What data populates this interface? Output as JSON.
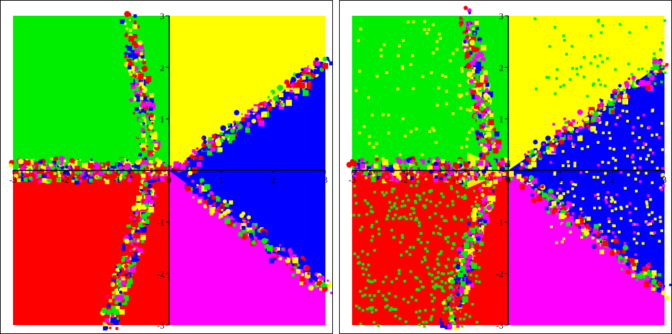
{
  "plots": [
    {
      "id": "left",
      "x_ticks": [
        "-3",
        "-2",
        "-1",
        "0",
        "1",
        "2",
        "3"
      ],
      "y_ticks": [
        "3",
        "2",
        "1",
        "-1",
        "-2",
        "-3"
      ],
      "xlim": [
        -3,
        3
      ],
      "ylim": [
        -3,
        3
      ],
      "colors": {
        "q1": "#ffff00",
        "q2": "#00ee00",
        "q3": "#ff0000",
        "q4": "#ff00ff",
        "blue": "#0000ff"
      }
    },
    {
      "id": "right",
      "x_ticks": [
        "-3",
        "-2",
        "-1",
        "0",
        "1",
        "2",
        "3"
      ],
      "y_ticks": [
        "3",
        "2",
        "1",
        "-1",
        "-2",
        "-3"
      ],
      "xlim": [
        -3,
        3
      ],
      "ylim": [
        -3,
        3
      ],
      "colors": {
        "q1": "#ffff00",
        "q2": "#00ee00",
        "q3": "#ff0000",
        "q4": "#ff00ff",
        "blue": "#0000ff"
      }
    }
  ]
}
